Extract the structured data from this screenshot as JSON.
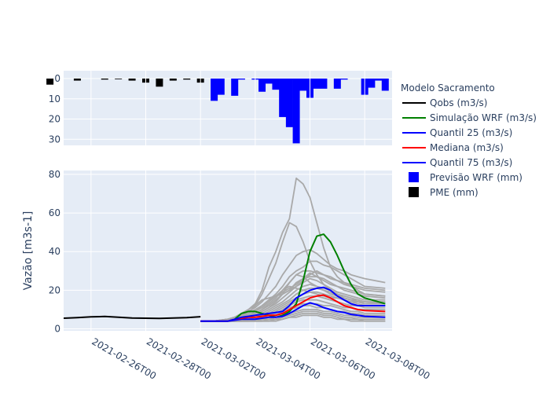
{
  "chart_data": {
    "type": "line",
    "precip_panel": {
      "type": "bar",
      "y_reversed": true,
      "ylim": [
        33,
        0
      ],
      "yticks": [
        "0",
        "10",
        "20",
        "30"
      ],
      "series": [
        {
          "name": "PME (mm)",
          "color": "#000000",
          "x": [
            "2021-02-24T12",
            "2021-02-25T12",
            "2021-02-26T12",
            "2021-02-27T00",
            "2021-02-27T12",
            "2021-02-28T00",
            "2021-02-28T12",
            "2021-03-01T00",
            "2021-03-01T12",
            "2021-03-02T00"
          ],
          "values": [
            3,
            1,
            0.5,
            0.3,
            1,
            2,
            4,
            1,
            0.5,
            2
          ]
        },
        {
          "name": "Previsão WRF (mm)",
          "color": "#0000ff",
          "x": [
            "2021-03-02T12",
            "2021-03-02T18",
            "2021-03-03T06",
            "2021-03-03T12",
            "2021-03-04T00",
            "2021-03-04T06",
            "2021-03-04T12",
            "2021-03-04T18",
            "2021-03-05T00",
            "2021-03-05T06",
            "2021-03-05T12",
            "2021-03-05T18",
            "2021-03-06T00",
            "2021-03-07T00",
            "2021-03-07T06",
            "2021-03-08T00",
            "2021-03-08T06"
          ],
          "values": [
            11,
            8,
            8.5,
            0.5,
            0.5,
            6.5,
            2.5,
            5.5,
            19,
            24,
            32,
            6,
            9.5,
            5,
            0.5,
            8,
            4.5
          ]
        },
        {
          "name": "Previsão WRF (mm) (extra)",
          "color": "#0000ff",
          "x": [
            "2021-03-08T12",
            "2021-03-08T18",
            "2021-03-06T06",
            "2021-03-06T12"
          ],
          "values": [
            1,
            6,
            5,
            5
          ]
        }
      ]
    },
    "flow_panel": {
      "ylabel": "Vazão [m3s-1]",
      "ylim": [
        -1,
        82
      ],
      "yticks": [
        "0",
        "20",
        "40",
        "60",
        "80"
      ],
      "xlim": [
        "2021-02-25T00",
        "2021-03-09T00"
      ],
      "xticks": [
        "2021-02-26T00",
        "2021-02-28T00",
        "2021-03-02T00",
        "2021-03-04T00",
        "2021-03-06T00",
        "2021-03-08T00"
      ],
      "ensemble": [
        {
          "color": "#a9a9a9",
          "y": [
            4,
            4,
            5,
            6,
            8,
            10,
            13,
            20,
            32,
            40,
            50,
            57,
            78,
            75,
            68,
            55,
            42,
            32,
            27,
            24,
            22,
            20,
            18,
            17
          ]
        },
        {
          "color": "#a9a9a9",
          "y": [
            4,
            4,
            5,
            6,
            8,
            10,
            12,
            18,
            26,
            34,
            45,
            55,
            53,
            45,
            35,
            28,
            23,
            20,
            18,
            16,
            15,
            14,
            14,
            13
          ]
        },
        {
          "color": "#a9a9a9",
          "y": [
            4,
            4,
            5,
            6,
            7,
            9,
            11,
            14,
            18,
            22,
            28,
            33,
            38,
            40,
            41,
            39,
            36,
            33,
            31,
            30,
            28,
            27,
            26,
            24
          ]
        },
        {
          "color": "#a9a9a9",
          "y": [
            4,
            4,
            5,
            5,
            7,
            8,
            10,
            12,
            15,
            18,
            22,
            27,
            30,
            32,
            35,
            35,
            33,
            32,
            30,
            28,
            26,
            24,
            22,
            21
          ]
        },
        {
          "color": "#a9a9a9",
          "y": [
            4,
            4,
            4,
            5,
            6,
            7,
            9,
            11,
            14,
            17,
            20,
            24,
            28,
            30,
            30,
            29,
            28,
            27,
            25,
            24,
            23,
            22,
            21,
            20
          ]
        },
        {
          "color": "#a9a9a9",
          "y": [
            4,
            4,
            4,
            5,
            6,
            7,
            8,
            10,
            12,
            15,
            18,
            20,
            24,
            26,
            27,
            27,
            26,
            24,
            22,
            21,
            20,
            19,
            18,
            17
          ]
        },
        {
          "color": "#a9a9a9",
          "y": [
            4,
            4,
            4,
            5,
            5,
            6,
            7,
            9,
            11,
            13,
            16,
            19,
            22,
            24,
            26,
            25,
            23,
            21,
            19,
            18,
            17,
            16,
            15,
            15
          ]
        },
        {
          "color": "#a9a9a9",
          "y": [
            4,
            4,
            4,
            5,
            5,
            6,
            7,
            8,
            10,
            12,
            14,
            17,
            20,
            22,
            23,
            22,
            21,
            20,
            18,
            17,
            16,
            15,
            14,
            14
          ]
        },
        {
          "color": "#a9a9a9",
          "y": [
            4,
            4,
            4,
            4,
            5,
            6,
            6,
            7,
            9,
            11,
            13,
            15,
            18,
            20,
            21,
            21,
            20,
            19,
            17,
            16,
            15,
            14,
            13,
            13
          ]
        },
        {
          "color": "#a9a9a9",
          "y": [
            4,
            4,
            4,
            4,
            5,
            5,
            6,
            7,
            8,
            10,
            12,
            14,
            16,
            18,
            19,
            19,
            18,
            17,
            16,
            15,
            14,
            13,
            12,
            12
          ]
        },
        {
          "color": "#a9a9a9",
          "y": [
            4,
            4,
            4,
            4,
            5,
            5,
            6,
            6,
            7,
            9,
            11,
            13,
            15,
            16,
            17,
            17,
            16,
            15,
            14,
            13,
            12,
            12,
            11,
            11
          ]
        },
        {
          "color": "#a9a9a9",
          "y": [
            4,
            4,
            4,
            4,
            4,
            5,
            5,
            6,
            7,
            8,
            10,
            12,
            14,
            15,
            15,
            15,
            14,
            13,
            12,
            11,
            11,
            10,
            10,
            10
          ]
        },
        {
          "color": "#a9a9a9",
          "y": [
            4,
            4,
            4,
            4,
            4,
            5,
            5,
            5,
            6,
            7,
            9,
            11,
            12,
            13,
            13,
            13,
            12,
            12,
            11,
            10,
            9,
            9,
            8,
            8
          ]
        },
        {
          "color": "#a9a9a9",
          "y": [
            4,
            4,
            4,
            4,
            4,
            4,
            5,
            5,
            6,
            7,
            8,
            10,
            11,
            12,
            12,
            11,
            11,
            10,
            9,
            9,
            8,
            8,
            7,
            7
          ]
        },
        {
          "color": "#a9a9a9",
          "y": [
            4,
            4,
            4,
            4,
            4,
            4,
            4,
            5,
            5,
            6,
            7,
            8,
            9,
            10,
            10,
            10,
            9,
            9,
            8,
            7,
            7,
            6,
            6,
            6
          ]
        },
        {
          "color": "#a9a9a9",
          "y": [
            4,
            4,
            4,
            4,
            4,
            4,
            4,
            4,
            5,
            5,
            6,
            7,
            8,
            9,
            9,
            9,
            8,
            8,
            7,
            6,
            6,
            5,
            5,
            5
          ]
        },
        {
          "color": "#a9a9a9",
          "y": [
            4,
            4,
            4,
            4,
            4,
            4,
            4,
            4,
            4,
            5,
            5,
            6,
            7,
            8,
            8,
            8,
            7,
            7,
            6,
            5,
            5,
            5,
            4,
            4
          ]
        },
        {
          "color": "#a9a9a9",
          "y": [
            4,
            4,
            4,
            4,
            4,
            4,
            4,
            4,
            4,
            4,
            5,
            6,
            6,
            7,
            7,
            7,
            6,
            6,
            5,
            5,
            4,
            4,
            4,
            4
          ]
        },
        {
          "color": "#a9a9a9",
          "y": [
            4,
            4,
            4,
            5,
            6,
            8,
            12,
            15,
            16,
            17,
            18,
            20,
            22,
            25,
            28,
            30,
            28,
            26,
            25,
            23,
            22,
            21,
            20,
            19
          ]
        },
        {
          "color": "#a9a9a9",
          "y": [
            4,
            4,
            5,
            5,
            6,
            7,
            9,
            12,
            15,
            17,
            19,
            21,
            23,
            26,
            29,
            27,
            25,
            23,
            22,
            20,
            19,
            18,
            17,
            16
          ]
        },
        {
          "color": "#a9a9a9",
          "y": [
            4,
            4,
            4,
            5,
            5,
            6,
            7,
            9,
            11,
            14,
            18,
            24,
            28,
            27,
            24,
            22,
            20,
            18,
            17,
            16,
            15,
            15,
            14,
            14
          ]
        },
        {
          "color": "#a9a9a9",
          "y": [
            4,
            4,
            4,
            5,
            6,
            7,
            8,
            10,
            13,
            16,
            20,
            22,
            21,
            20,
            19,
            18,
            17,
            16,
            16,
            15,
            14,
            14,
            13,
            13
          ]
        }
      ],
      "series": [
        {
          "name": "Qobs (m3/s)",
          "color": "#000000",
          "x": [
            "2021-02-25T00",
            "2021-02-25T12",
            "2021-02-26T00",
            "2021-02-26T12",
            "2021-02-27T00",
            "2021-02-27T12",
            "2021-02-28T00",
            "2021-02-28T12",
            "2021-03-01T00",
            "2021-03-01T12",
            "2021-03-02T00"
          ],
          "y": [
            5.5,
            5.8,
            6.2,
            6.4,
            6.0,
            5.6,
            5.5,
            5.4,
            5.6,
            5.8,
            6.3
          ]
        },
        {
          "name": "Simulação WRF (m3/s)",
          "color": "#008000",
          "y": [
            4,
            4,
            4,
            5,
            8,
            9,
            9,
            8,
            7,
            6,
            7,
            9,
            13,
            25,
            40,
            48,
            49,
            45,
            38,
            30,
            23,
            18,
            16,
            13
          ]
        },
        {
          "name": "Quantil 25 (m3/s)",
          "color": "#0000ff",
          "y": [
            4,
            4,
            4,
            4.5,
            5,
            5,
            5,
            5.5,
            6,
            6,
            6.5,
            8,
            10,
            12,
            13.5,
            12.5,
            11,
            10,
            9,
            8.5,
            7.5,
            7,
            6.5,
            6
          ]
        },
        {
          "name": "Mediana (m3/s)",
          "color": "#ff0000",
          "y": [
            4,
            4,
            4,
            5,
            5.5,
            6,
            6,
            6.5,
            7,
            7,
            8,
            10,
            12,
            14,
            16,
            17,
            17.5,
            16,
            14,
            12,
            11,
            10,
            9.5,
            9
          ]
        },
        {
          "name": "Quantil 75 (m3/s)",
          "color": "#0000ff",
          "y": [
            4,
            4,
            4,
            5,
            6,
            6.5,
            7,
            7.5,
            8,
            8.5,
            9,
            12,
            16,
            18,
            20,
            21,
            21.5,
            20,
            17,
            15,
            13,
            12,
            12,
            12
          ]
        }
      ],
      "forecast_x": [
        "2021-03-02T00",
        "2021-03-02T12",
        "2021-03-03T00",
        "2021-03-03T06",
        "2021-03-03T12",
        "2021-03-03T18",
        "2021-03-04T00",
        "2021-03-04T06",
        "2021-03-04T12",
        "2021-03-04T18",
        "2021-03-05T00",
        "2021-03-05T06",
        "2021-03-05T12",
        "2021-03-05T18",
        "2021-03-06T00",
        "2021-03-06T06",
        "2021-03-06T12",
        "2021-03-06T18",
        "2021-03-07T00",
        "2021-03-07T06",
        "2021-03-07T12",
        "2021-03-07T18",
        "2021-03-08T00",
        "2021-03-08T18"
      ]
    },
    "legend": {
      "title": "Modelo Sacramento",
      "placement": "right",
      "entries": [
        {
          "label": "Qobs (m3/s)",
          "kind": "line",
          "color": "#000000"
        },
        {
          "label": "Simulação WRF (m3/s)",
          "kind": "line",
          "color": "#008000"
        },
        {
          "label": "Quantil 25 (m3/s)",
          "kind": "line",
          "color": "#0000ff"
        },
        {
          "label": "Mediana (m3/s)",
          "kind": "line",
          "color": "#ff0000"
        },
        {
          "label": "Quantil 75 (m3/s)",
          "kind": "line",
          "color": "#0000ff"
        },
        {
          "label": "Previsão WRF (mm)",
          "kind": "square",
          "color": "#0000ff"
        },
        {
          "label": "PME (mm)",
          "kind": "square",
          "color": "#000000"
        }
      ]
    },
    "plot_bg": "#e5ecf6",
    "grid": true
  }
}
